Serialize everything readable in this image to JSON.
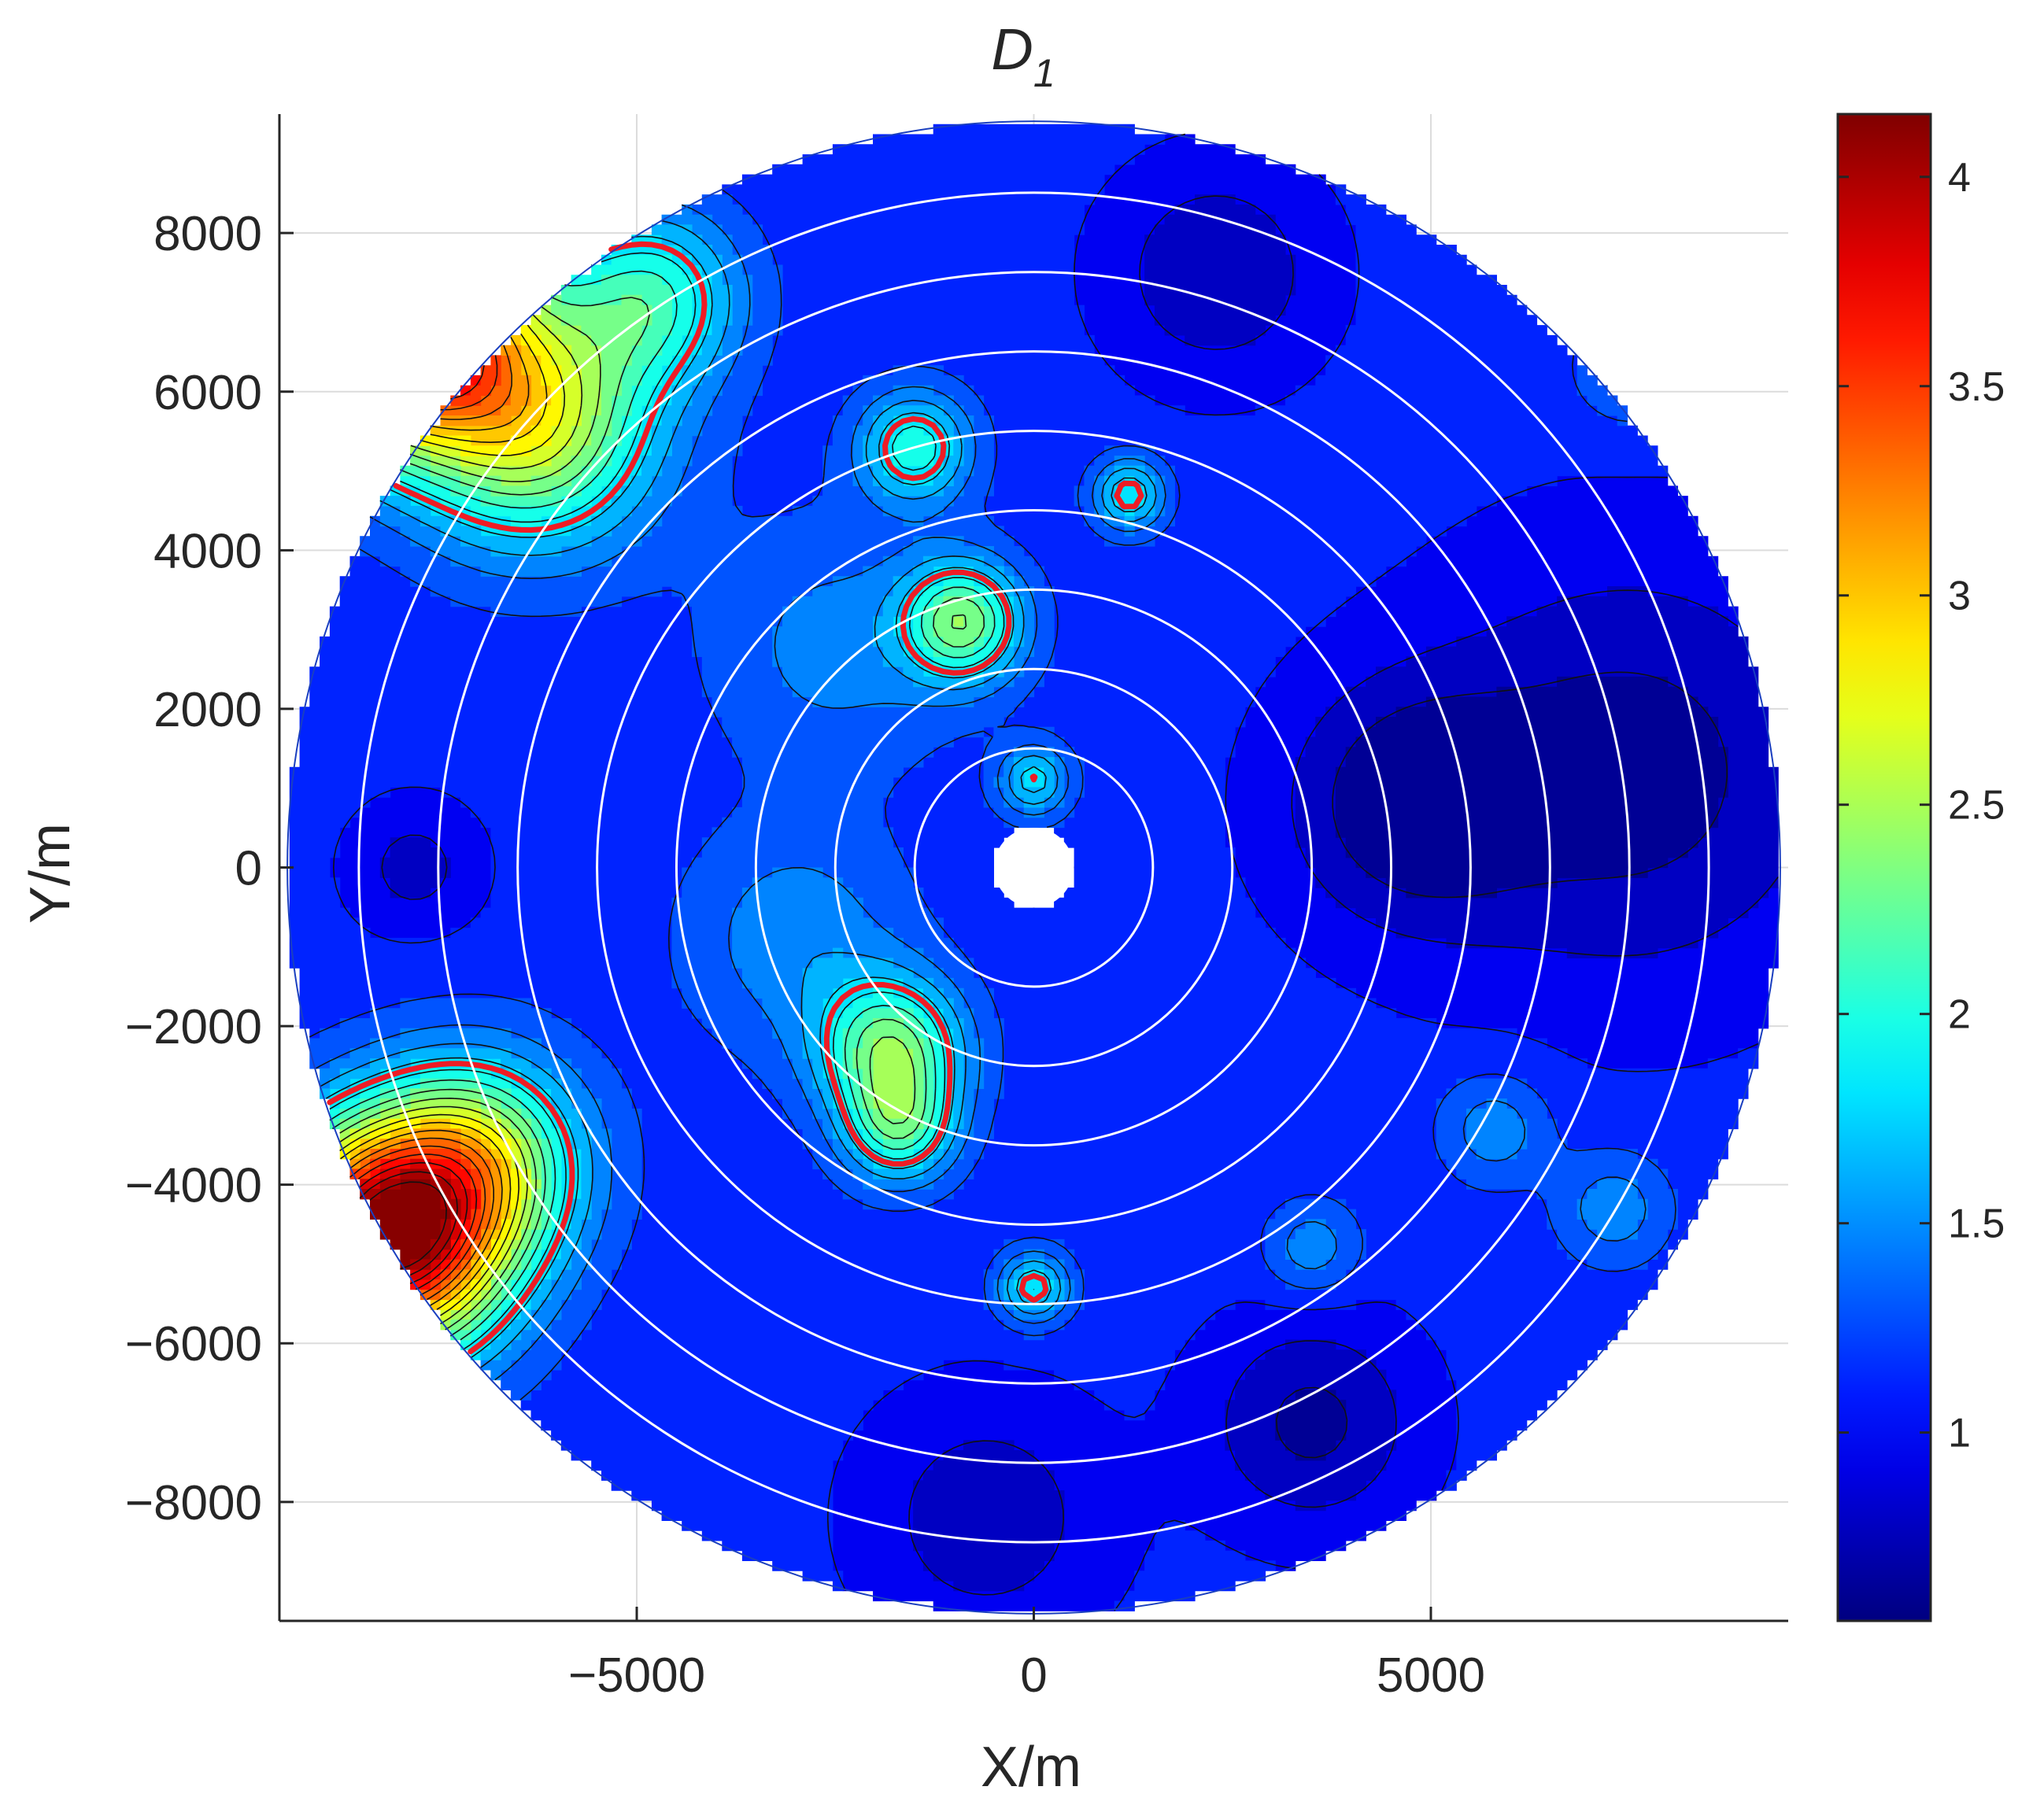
{
  "chart_data": {
    "type": "heatmap",
    "subtype": "filled-contour",
    "title": {
      "main": "D",
      "subscript": "1"
    },
    "xlabel": "X/m",
    "ylabel": "Y/m",
    "xlim": [
      -9500,
      9500
    ],
    "ylim": [
      -9500,
      9500
    ],
    "xticks": [
      -5000,
      0,
      5000
    ],
    "xtick_labels": [
      "−5000",
      "0",
      "5000"
    ],
    "yticks": [
      -8000,
      -6000,
      -4000,
      -2000,
      0,
      2000,
      4000,
      6000,
      8000
    ],
    "ytick_labels": [
      "−8000",
      "−6000",
      "−4000",
      "−2000",
      "0",
      "2000",
      "4000",
      "6000",
      "8000"
    ],
    "grid": true,
    "domain_shape": "disc",
    "domain_outer_radius": 9400,
    "domain_inner_radius": 500,
    "range_rings": [
      1500,
      2500,
      3500,
      4500,
      5500,
      6500,
      7500,
      8500
    ],
    "colormap": "jet",
    "colorbar": {
      "location": "right",
      "limits": [
        0.55,
        4.15
      ],
      "ticks": [
        1,
        1.5,
        2,
        2.5,
        3,
        3.5,
        4
      ],
      "tick_labels": [
        "1",
        "1.5",
        "2",
        "2.5",
        "3",
        "3.5",
        "4"
      ]
    },
    "highlight_contour": {
      "level": 1.8,
      "color": "#ee1c24"
    },
    "field": {
      "background_level": 1.1,
      "blobs": [
        {
          "x": -8000,
          "y": 6800,
          "value": 4.1,
          "radius": 1400
        },
        {
          "x": -6300,
          "y": 5600,
          "value": 2.6,
          "radius": 1500
        },
        {
          "x": -4800,
          "y": 7200,
          "value": 2.0,
          "radius": 1100
        },
        {
          "x": -8200,
          "y": -4700,
          "value": 4.1,
          "radius": 1450
        },
        {
          "x": -7000,
          "y": -3700,
          "value": 2.4,
          "radius": 1300
        },
        {
          "x": -1500,
          "y": 5300,
          "value": 2.0,
          "radius": 700
        },
        {
          "x": 1200,
          "y": 4700,
          "value": 1.9,
          "radius": 450
        },
        {
          "x": -900,
          "y": 3100,
          "value": 2.3,
          "radius": 750
        },
        {
          "x": -1800,
          "y": -2300,
          "value": 2.3,
          "radius": 900
        },
        {
          "x": -1700,
          "y": -3300,
          "value": 2.0,
          "radius": 700
        },
        {
          "x": 0,
          "y": -5300,
          "value": 1.9,
          "radius": 450
        },
        {
          "x": 0,
          "y": 1100,
          "value": 1.8,
          "radius": 450
        },
        {
          "x": -3000,
          "y": -900,
          "value": 1.5,
          "radius": 1400
        },
        {
          "x": -2500,
          "y": 2800,
          "value": 1.45,
          "radius": 1600
        },
        {
          "x": 5800,
          "y": -3300,
          "value": 1.5,
          "radius": 700
        },
        {
          "x": 7300,
          "y": -4300,
          "value": 1.5,
          "radius": 700
        },
        {
          "x": 7500,
          "y": 6300,
          "value": 1.5,
          "radius": 650
        },
        {
          "x": 3500,
          "y": -4800,
          "value": 1.5,
          "radius": 600
        },
        {
          "x": 7500,
          "y": 1200,
          "value": 0.6,
          "radius": 2600
        },
        {
          "x": 4700,
          "y": 800,
          "value": 0.6,
          "radius": 1500
        },
        {
          "x": 3500,
          "y": -7000,
          "value": 0.65,
          "radius": 1300
        },
        {
          "x": -600,
          "y": -8200,
          "value": 0.75,
          "radius": 1500
        },
        {
          "x": 2300,
          "y": 7500,
          "value": 0.7,
          "radius": 1300
        },
        {
          "x": -7800,
          "y": 0,
          "value": 0.8,
          "radius": 800
        }
      ]
    }
  }
}
